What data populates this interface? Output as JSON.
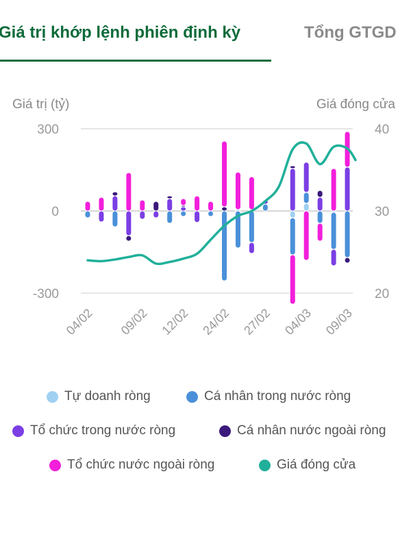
{
  "tabs": [
    {
      "label": "Giá trị khớp lệnh phiên định kỳ",
      "active": true
    },
    {
      "label": "Tổng GTGD",
      "active": false
    }
  ],
  "chart_data": {
    "type": "bar",
    "stacked": true,
    "left_axis_label": "Giá trị (tỷ)",
    "right_axis_label": "Giá đóng cửa",
    "left_ylim": [
      -300,
      300
    ],
    "left_ticks": [
      300,
      0,
      -300
    ],
    "left_tick_labels": [
      "300",
      "0",
      "-300"
    ],
    "right_ylim": [
      20,
      40
    ],
    "right_ticks": [
      40,
      30,
      20
    ],
    "right_tick_labels": [
      "40",
      "30",
      "20"
    ],
    "grid": true,
    "legend_position": "bottom",
    "x_tick_labels": [
      "04/02",
      "09/02",
      "12/02",
      "24/02",
      "27/02",
      "04/03",
      "09/03"
    ],
    "x_tick_indices": [
      0,
      4,
      7,
      10,
      13,
      16,
      19
    ],
    "num_bars": 20,
    "series": [
      {
        "name": "Tự doanh ròng",
        "color": "#9fd0f2",
        "kind": "bar",
        "values": [
          0,
          0,
          0,
          0,
          0,
          0,
          0,
          0,
          0,
          0,
          0,
          5,
          5,
          0,
          0,
          -25,
          28,
          0,
          -5,
          0
        ]
      },
      {
        "name": "Cá nhân trong nước ròng",
        "color": "#4a90d9",
        "kind": "bar",
        "values": [
          -25,
          0,
          -58,
          0,
          0,
          0,
          -45,
          -20,
          0,
          -20,
          -255,
          -135,
          -115,
          25,
          0,
          -135,
          40,
          -45,
          -135,
          -170
        ]
      },
      {
        "name": "Tổ chức trong nước ròng",
        "color": "#7b3fe4",
        "kind": "bar",
        "values": [
          0,
          -40,
          55,
          -90,
          -30,
          -25,
          45,
          15,
          -42,
          0,
          0,
          0,
          -40,
          15,
          0,
          155,
          110,
          50,
          -60,
          160
        ]
      },
      {
        "name": "Cá nhân nước ngoài ròng",
        "color": "#3a1a7a",
        "kind": "bar",
        "values": [
          0,
          0,
          15,
          -20,
          0,
          35,
          10,
          5,
          0,
          0,
          15,
          0,
          0,
          0,
          0,
          10,
          0,
          25,
          0,
          -20
        ]
      },
      {
        "name": "Tổ chức nước ngoài ròng",
        "color": "#f21fdb",
        "kind": "bar",
        "values": [
          35,
          50,
          0,
          140,
          40,
          0,
          0,
          25,
          55,
          35,
          240,
          137,
          120,
          0,
          0,
          -180,
          -180,
          -65,
          155,
          130
        ]
      },
      {
        "name": "Giá đóng cửa",
        "color": "#20b09a",
        "kind": "line",
        "x": [
          0,
          1,
          2,
          3,
          4,
          5,
          6,
          7,
          8,
          9,
          10,
          11,
          12,
          13,
          14,
          15,
          16,
          17,
          18,
          19,
          19.6
        ],
        "values": [
          24.0,
          23.9,
          24.1,
          24.4,
          24.6,
          23.6,
          23.8,
          24.2,
          24.8,
          26.5,
          28.2,
          29.4,
          30.0,
          31.2,
          33.0,
          37.5,
          38.2,
          35.7,
          37.8,
          37.6,
          36.2
        ]
      }
    ]
  }
}
